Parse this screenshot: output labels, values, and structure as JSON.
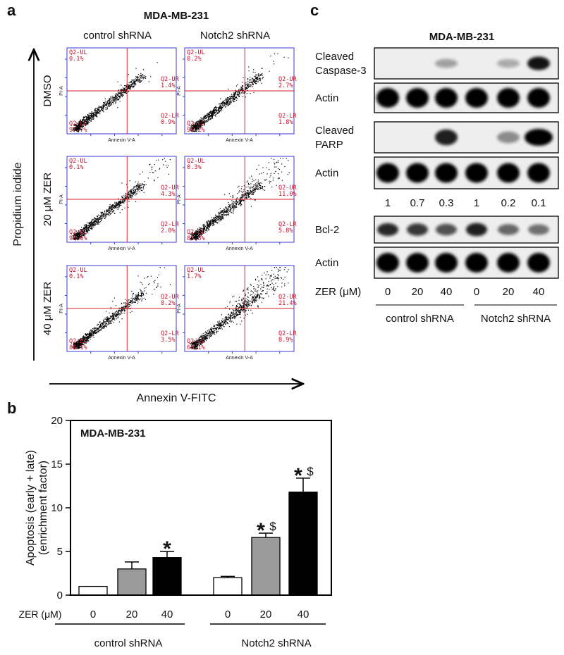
{
  "panel_labels": [
    "a",
    "b",
    "c"
  ],
  "panel_a": {
    "title": "MDA-MB-231",
    "columns": [
      "control shRNA",
      "Notch2 shRNA"
    ],
    "rows": [
      "DMSO",
      "20 μM ZER",
      "40 μM ZER"
    ],
    "y_axis_label": "Propidium iodide",
    "x_axis_label": "Annexin V-FITC",
    "plot_x_label": "Annexin V-A",
    "plot_y_label": "PI-A",
    "quadrant_names": [
      "Q2-UL",
      "Q2-UR",
      "Q2-LR",
      "Q2-LL"
    ],
    "plots": [
      [
        "0.1%",
        "1.4%",
        "0.9%",
        "97.7%"
      ],
      [
        "0.2%",
        "2.7%",
        "1.8%",
        "95.2%"
      ],
      [
        "0.1%",
        "4.3%",
        "2.0%",
        "93.6%"
      ],
      [
        "0.3%",
        "11.0%",
        "5.8%",
        "82.8%"
      ],
      [
        "0.1%",
        "8.2%",
        "3.5%",
        "88.1%"
      ],
      [
        "1.7%",
        "21.4%",
        "8.9%",
        "68.1%"
      ]
    ]
  },
  "chart_data": {
    "type": "bar",
    "title": "MDA-MB-231",
    "y_label_lines": [
      "Apoptosis (early + late)",
      "(enrichment factor)"
    ],
    "x_label": "ZER (μM)",
    "categories": [
      "0",
      "20",
      "40",
      "0",
      "20",
      "40"
    ],
    "groups": [
      "control shRNA",
      "Notch2 shRNA"
    ],
    "values": [
      1,
      3,
      4.3,
      2,
      6.6,
      11.8
    ],
    "errors": [
      0,
      0.8,
      0.7,
      0.15,
      0.5,
      1.6
    ],
    "colors": [
      "#ffffff",
      "#9b9b9b",
      "#000000",
      "#ffffff",
      "#9b9b9b",
      "#000000"
    ],
    "stars": [
      null,
      null,
      "*",
      null,
      "*",
      "*"
    ],
    "dollars": [
      null,
      null,
      null,
      null,
      "$",
      "$"
    ],
    "ylim": [
      0,
      20
    ],
    "yticks": [
      0,
      5,
      10,
      15,
      20
    ]
  },
  "panel_c": {
    "title": "MDA-MB-231",
    "blots": [
      {
        "label_lines": [
          "Cleaved",
          "Caspase-3"
        ]
      },
      {
        "label_lines": [
          "Actin"
        ]
      },
      {
        "label_lines": [
          "Cleaved",
          "PARP"
        ]
      },
      {
        "label_lines": [
          "Actin"
        ]
      },
      {
        "label_lines": [
          "Bcl-2"
        ]
      },
      {
        "label_lines": [
          "Actin"
        ]
      }
    ],
    "ratios": [
      1,
      0.7,
      0.3,
      1,
      0.2,
      0.1
    ],
    "dose_label": "ZER (μM)",
    "doses": [
      0,
      20,
      40,
      0,
      20,
      40
    ],
    "groups": [
      "control shRNA",
      "Notch2 shRNA"
    ]
  }
}
